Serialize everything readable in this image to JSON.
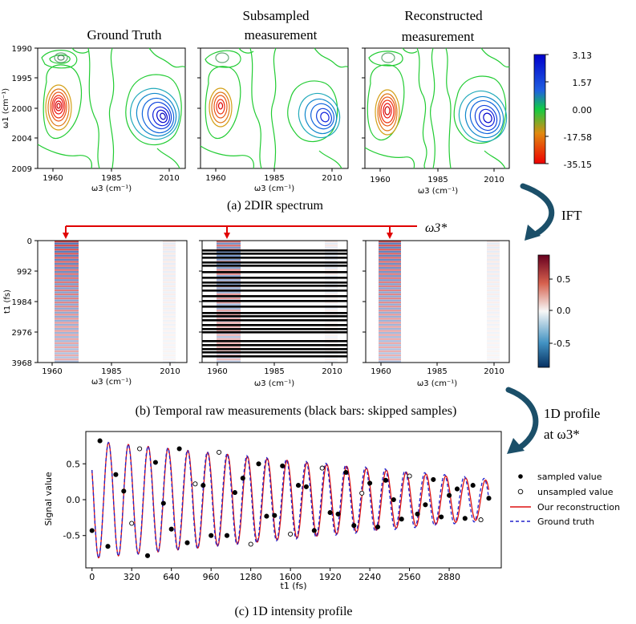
{
  "panel_a": {
    "caption": "(a) 2DIR spectrum",
    "titles": [
      "Ground Truth",
      "Subsampled",
      "measurement",
      "Reconstructed",
      "measurement"
    ],
    "ylabel": "ω1 (cm⁻¹)",
    "xlabel": "ω3 (cm⁻¹)",
    "yticks": [
      "1990",
      "1995",
      "2000",
      "2004",
      "2009"
    ],
    "xticks": [
      "1960",
      "1985",
      "2010"
    ],
    "colorbar_ticks": [
      "3.13",
      "1.57",
      "0.00",
      "-17.58",
      "-35.15"
    ]
  },
  "panel_b": {
    "caption": "(b) Temporal raw measurements (black bars: skipped samples)",
    "ylabel": "t1 (fs)",
    "xlabel": "ω3 (cm⁻¹)",
    "yticks": [
      "0",
      "992",
      "1984",
      "2976",
      "3968"
    ],
    "xticks": [
      "1960",
      "1985",
      "2010"
    ],
    "colorbar_ticks": [
      "0.5",
      "0.0",
      "-0.5"
    ],
    "omega_label": "ω3*"
  },
  "panel_c": {
    "caption": "(c) 1D intensity profile",
    "ylabel": "Signal value",
    "xlabel": "t1 (fs)",
    "xticks": [
      "0",
      "320",
      "640",
      "960",
      "1280",
      "1600",
      "1920",
      "2240",
      "2560",
      "2880"
    ],
    "yticks": [
      "0.5",
      "0.0",
      "-0.5"
    ]
  },
  "arrows": {
    "ift": "IFT",
    "profile_line1": "1D profile",
    "profile_line2": "at ω3*"
  },
  "legend": {
    "sampled": "sampled value",
    "unsampled": "unsampled value",
    "reconstruction": "Our reconstruction",
    "ground_truth": "Ground truth"
  },
  "chart_data": {
    "type": "line",
    "title": "(c) 1D intensity profile",
    "xlabel": "t1 (fs)",
    "ylabel": "Signal value",
    "xlim": [
      -50,
      3300
    ],
    "ylim": [
      -0.95,
      0.95
    ],
    "oscillation_period_fs": 160,
    "series": [
      {
        "name": "Our reconstruction",
        "color": "#dd1111",
        "style": "solid",
        "amplitude_start": 0.82,
        "amplitude_end": 0.27
      },
      {
        "name": "Ground truth",
        "color": "#2222cc",
        "style": "dashed",
        "amplitude_start": 0.82,
        "amplitude_end": 0.29
      }
    ],
    "sample_spacing_fs": 64,
    "samples": [
      {
        "t": 0,
        "v": -0.43,
        "sampled": true
      },
      {
        "t": 64,
        "v": 0.82,
        "sampled": true
      },
      {
        "t": 128,
        "v": -0.65,
        "sampled": true
      },
      {
        "t": 192,
        "v": 0.35,
        "sampled": true
      },
      {
        "t": 256,
        "v": 0.12,
        "sampled": true
      },
      {
        "t": 320,
        "v": -0.33,
        "sampled": false
      },
      {
        "t": 384,
        "v": 0.71,
        "sampled": false
      },
      {
        "t": 448,
        "v": -0.78,
        "sampled": true
      },
      {
        "t": 512,
        "v": 0.52,
        "sampled": true
      },
      {
        "t": 576,
        "v": -0.05,
        "sampled": true
      },
      {
        "t": 640,
        "v": -0.41,
        "sampled": true
      },
      {
        "t": 704,
        "v": 0.71,
        "sampled": true
      },
      {
        "t": 768,
        "v": -0.6,
        "sampled": true
      },
      {
        "t": 832,
        "v": 0.22,
        "sampled": false
      },
      {
        "t": 896,
        "v": 0.2,
        "sampled": true
      },
      {
        "t": 960,
        "v": -0.5,
        "sampled": true
      },
      {
        "t": 1024,
        "v": 0.66,
        "sampled": false
      },
      {
        "t": 1088,
        "v": -0.5,
        "sampled": true
      },
      {
        "t": 1152,
        "v": 0.1,
        "sampled": true
      },
      {
        "t": 1216,
        "v": 0.3,
        "sampled": true
      },
      {
        "t": 1280,
        "v": -0.62,
        "sampled": false
      },
      {
        "t": 1344,
        "v": 0.5,
        "sampled": true
      },
      {
        "t": 1408,
        "v": -0.23,
        "sampled": true
      },
      {
        "t": 1472,
        "v": -0.22,
        "sampled": true
      },
      {
        "t": 1536,
        "v": 0.47,
        "sampled": true
      },
      {
        "t": 1600,
        "v": -0.48,
        "sampled": false
      },
      {
        "t": 1664,
        "v": 0.2,
        "sampled": true
      },
      {
        "t": 1728,
        "v": 0.18,
        "sampled": true
      },
      {
        "t": 1792,
        "v": -0.43,
        "sampled": true
      },
      {
        "t": 1856,
        "v": 0.44,
        "sampled": false
      },
      {
        "t": 1920,
        "v": -0.18,
        "sampled": true
      },
      {
        "t": 1984,
        "v": -0.2,
        "sampled": true
      },
      {
        "t": 2048,
        "v": 0.38,
        "sampled": true
      },
      {
        "t": 2112,
        "v": -0.36,
        "sampled": true
      },
      {
        "t": 2176,
        "v": 0.09,
        "sampled": false
      },
      {
        "t": 2240,
        "v": 0.23,
        "sampled": true
      },
      {
        "t": 2304,
        "v": -0.38,
        "sampled": true
      },
      {
        "t": 2368,
        "v": 0.27,
        "sampled": true
      },
      {
        "t": 2432,
        "v": 0.0,
        "sampled": true
      },
      {
        "t": 2496,
        "v": -0.27,
        "sampled": true
      },
      {
        "t": 2560,
        "v": 0.33,
        "sampled": false
      },
      {
        "t": 2624,
        "v": -0.2,
        "sampled": true
      },
      {
        "t": 2688,
        "v": -0.07,
        "sampled": true
      },
      {
        "t": 2752,
        "v": 0.28,
        "sampled": true
      },
      {
        "t": 2816,
        "v": -0.24,
        "sampled": true
      },
      {
        "t": 2880,
        "v": 0.06,
        "sampled": true
      },
      {
        "t": 2944,
        "v": 0.15,
        "sampled": true
      },
      {
        "t": 3008,
        "v": -0.26,
        "sampled": true
      },
      {
        "t": 3072,
        "v": 0.2,
        "sampled": true
      },
      {
        "t": 3136,
        "v": -0.28,
        "sampled": false
      },
      {
        "t": 3200,
        "v": 0.02,
        "sampled": true
      }
    ]
  }
}
